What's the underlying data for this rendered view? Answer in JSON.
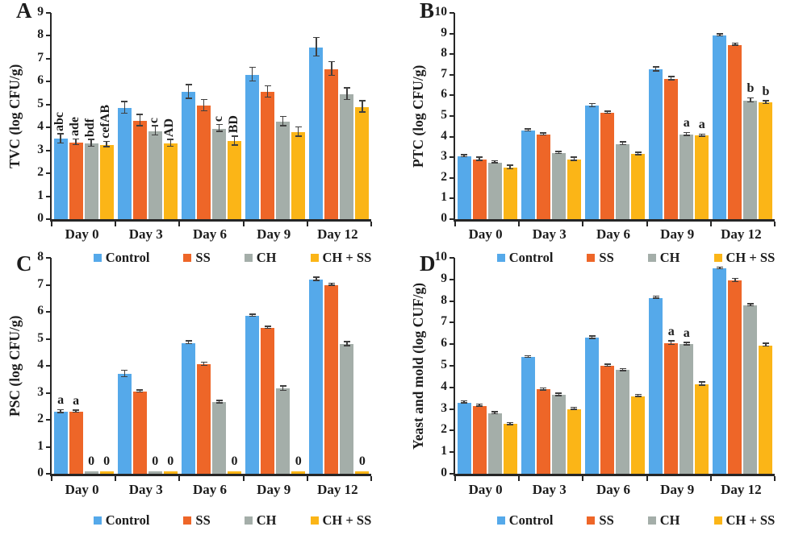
{
  "style": {
    "axis_color": "#262626",
    "error_bar_color": "#3f3f3f",
    "background": "#ffffff",
    "series_palette": {
      "Control": "#55A9EA",
      "SS": "#EE6628",
      "CH": "#A4AEA9",
      "CH + SS": "#FBB517"
    }
  },
  "chart_data": [
    {
      "type": "bar",
      "panel": "A",
      "ylabel": "TVC (log CFU/g)",
      "ylim": [
        0,
        9
      ],
      "ytick_step": 1,
      "grid": false,
      "legend_position": "bottom",
      "categories": [
        "Day 0",
        "Day 3",
        "Day 6",
        "Day 9",
        "Day 12"
      ],
      "series": [
        {
          "name": "Control",
          "color": "#55A9EA",
          "values": [
            3.5,
            4.85,
            5.55,
            6.3,
            7.5
          ],
          "errors": [
            0.2,
            0.25,
            0.3,
            0.3,
            0.4
          ]
        },
        {
          "name": "SS",
          "color": "#EE6628",
          "values": [
            3.35,
            4.3,
            4.95,
            5.55,
            6.55
          ],
          "errors": [
            0.12,
            0.25,
            0.25,
            0.25,
            0.3
          ]
        },
        {
          "name": "CH",
          "color": "#A4AEA9",
          "values": [
            3.3,
            3.85,
            3.95,
            4.25,
            5.45
          ],
          "errors": [
            0.15,
            0.2,
            0.15,
            0.2,
            0.25
          ]
        },
        {
          "name": "CH + SS",
          "color": "#FBB517",
          "values": [
            3.25,
            3.3,
            3.4,
            3.8,
            4.9
          ],
          "errors": [
            0.12,
            0.15,
            0.2,
            0.2,
            0.25
          ]
        }
      ],
      "annotations": [
        {
          "cat": 0,
          "series": 0,
          "text": "abc",
          "rotated": true
        },
        {
          "cat": 0,
          "series": 1,
          "text": "ade",
          "rotated": true
        },
        {
          "cat": 0,
          "series": 2,
          "text": "bdf",
          "rotated": true
        },
        {
          "cat": 0,
          "series": 3,
          "text": "cefAB",
          "rotated": true
        },
        {
          "cat": 1,
          "series": 2,
          "text": "c",
          "rotated": true
        },
        {
          "cat": 1,
          "series": 3,
          "text": "AD",
          "rotated": true
        },
        {
          "cat": 2,
          "series": 2,
          "text": "c",
          "rotated": true
        },
        {
          "cat": 2,
          "series": 3,
          "text": "BD",
          "rotated": true
        }
      ],
      "legend": [
        "Control",
        "SS",
        "CH",
        "CH + SS"
      ]
    },
    {
      "type": "bar",
      "panel": "B",
      "ylabel": "PTC (log CFU/g)",
      "ylim": [
        0,
        10
      ],
      "ytick_step": 1,
      "grid": false,
      "legend_position": "bottom",
      "categories": [
        "Day 0",
        "Day 3",
        "Day 6",
        "Day 9",
        "Day 12"
      ],
      "series": [
        {
          "name": "Control",
          "color": "#55A9EA",
          "values": [
            3.05,
            4.3,
            5.5,
            7.25,
            8.9
          ],
          "errors": [
            0.05,
            0.05,
            0.08,
            0.1,
            0.05
          ]
        },
        {
          "name": "SS",
          "color": "#EE6628",
          "values": [
            2.9,
            4.1,
            5.15,
            6.8,
            8.45
          ],
          "errors": [
            0.07,
            0.05,
            0.05,
            0.08,
            0.05
          ]
        },
        {
          "name": "CH",
          "color": "#A4AEA9",
          "values": [
            2.75,
            3.2,
            3.65,
            4.1,
            5.75
          ],
          "errors": [
            0.05,
            0.05,
            0.07,
            0.07,
            0.1
          ]
        },
        {
          "name": "CH + SS",
          "color": "#FBB517",
          "values": [
            2.5,
            2.9,
            3.15,
            4.05,
            5.65
          ],
          "errors": [
            0.08,
            0.07,
            0.06,
            0.05,
            0.07
          ]
        }
      ],
      "annotations": [
        {
          "cat": 3,
          "series": 2,
          "text": "a",
          "rotated": false
        },
        {
          "cat": 3,
          "series": 3,
          "text": "a",
          "rotated": false
        },
        {
          "cat": 4,
          "series": 2,
          "text": "b",
          "rotated": false
        },
        {
          "cat": 4,
          "series": 3,
          "text": "b",
          "rotated": false
        }
      ],
      "legend": [
        "Control",
        "SS",
        "CH",
        "CH + SS"
      ]
    },
    {
      "type": "bar",
      "panel": "C",
      "ylabel": "PSC (log CFU/g)",
      "ylim": [
        0,
        8
      ],
      "ytick_step": 1,
      "grid": false,
      "legend_position": "bottom",
      "categories": [
        "Day 0",
        "Day 3",
        "Day 6",
        "Day 9",
        "Day 12"
      ],
      "series": [
        {
          "name": "Control",
          "color": "#55A9EA",
          "values": [
            2.3,
            3.7,
            4.85,
            5.85,
            7.2
          ],
          "errors": [
            0.05,
            0.12,
            0.05,
            0.04,
            0.06
          ]
        },
        {
          "name": "SS",
          "color": "#EE6628",
          "values": [
            2.3,
            3.05,
            4.05,
            5.4,
            7.0
          ],
          "errors": [
            0.04,
            0.04,
            0.06,
            0.04,
            0.04
          ]
        },
        {
          "name": "CH",
          "color": "#A4AEA9",
          "values": [
            0.08,
            0.08,
            2.65,
            3.15,
            4.8
          ],
          "errors": [
            0,
            0,
            0.05,
            0.08,
            0.08
          ]
        },
        {
          "name": "CH + SS",
          "color": "#FBB517",
          "values": [
            0.08,
            0.08,
            0.08,
            0.08,
            0.08
          ],
          "errors": [
            0,
            0,
            0,
            0,
            0
          ]
        }
      ],
      "annotations": [
        {
          "cat": 0,
          "series": 0,
          "text": "a",
          "rotated": false
        },
        {
          "cat": 0,
          "series": 1,
          "text": "a",
          "rotated": false
        },
        {
          "cat": 0,
          "series": 2,
          "text": "0",
          "rotated": false
        },
        {
          "cat": 0,
          "series": 3,
          "text": "0",
          "rotated": false
        },
        {
          "cat": 1,
          "series": 2,
          "text": "0",
          "rotated": false
        },
        {
          "cat": 1,
          "series": 3,
          "text": "0",
          "rotated": false
        },
        {
          "cat": 2,
          "series": 3,
          "text": "0",
          "rotated": false
        },
        {
          "cat": 3,
          "series": 3,
          "text": "0",
          "rotated": false
        },
        {
          "cat": 4,
          "series": 3,
          "text": "0",
          "rotated": false
        }
      ],
      "legend": [
        "Control",
        "SS",
        "CH",
        "CH + SS"
      ]
    },
    {
      "type": "bar",
      "panel": "D",
      "ylabel": "Yeast and mold (log CUF/g)",
      "ylim": [
        0,
        10
      ],
      "ytick_step": 1,
      "grid": false,
      "legend_position": "bottom",
      "categories": [
        "Day 0",
        "Day 3",
        "Day 6",
        "Day 9",
        "Day 12"
      ],
      "series": [
        {
          "name": "Control",
          "color": "#55A9EA",
          "values": [
            3.3,
            5.4,
            6.3,
            8.15,
            9.5
          ],
          "errors": [
            0.05,
            0.04,
            0.06,
            0.05,
            0.04
          ]
        },
        {
          "name": "SS",
          "color": "#EE6628",
          "values": [
            3.15,
            3.9,
            5.0,
            6.05,
            8.95
          ],
          "errors": [
            0.05,
            0.04,
            0.04,
            0.08,
            0.08
          ]
        },
        {
          "name": "CH",
          "color": "#A4AEA9",
          "values": [
            2.8,
            3.65,
            4.8,
            6.0,
            7.8
          ],
          "errors": [
            0.05,
            0.05,
            0.05,
            0.06,
            0.05
          ]
        },
        {
          "name": "CH + SS",
          "color": "#FBB517",
          "values": [
            2.3,
            3.0,
            3.6,
            4.15,
            5.95
          ],
          "errors": [
            0.05,
            0.05,
            0.05,
            0.08,
            0.07
          ]
        }
      ],
      "annotations": [
        {
          "cat": 3,
          "series": 1,
          "text": "a",
          "rotated": false
        },
        {
          "cat": 3,
          "series": 2,
          "text": "a",
          "rotated": false
        }
      ],
      "legend": [
        "Control",
        "SS",
        "CH",
        "CH + SS"
      ]
    }
  ]
}
